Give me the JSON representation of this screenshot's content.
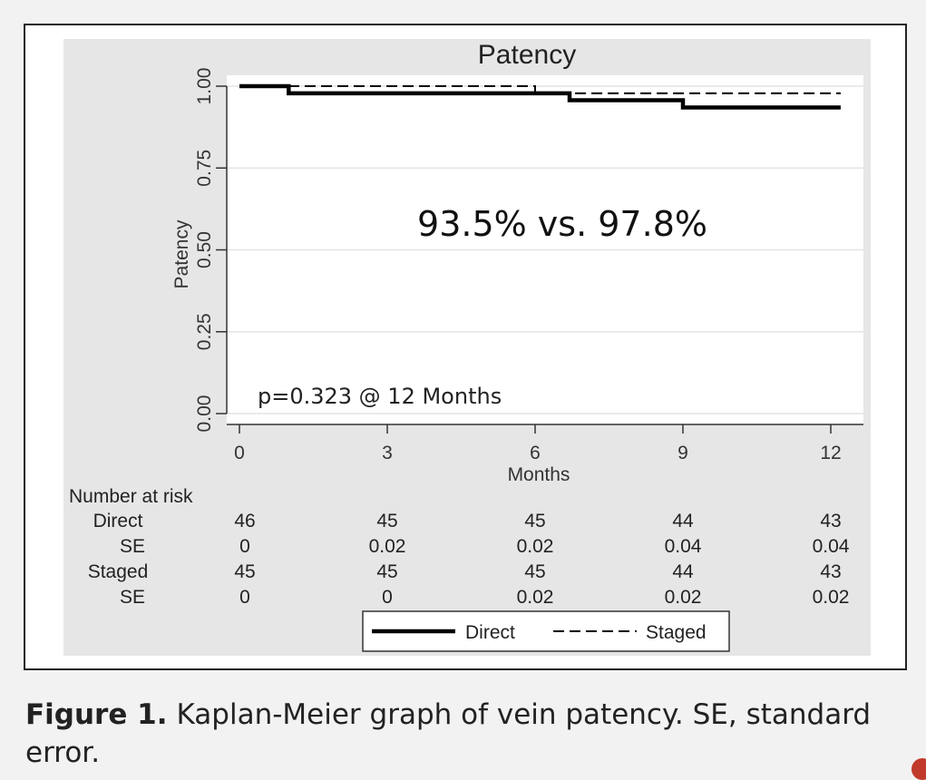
{
  "chart_data": {
    "type": "line",
    "title": "Patency",
    "xlabel": "Months",
    "ylabel": "Patency",
    "xlim": [
      0,
      12
    ],
    "ylim": [
      0,
      1
    ],
    "xticks": [
      0,
      3,
      6,
      9,
      12
    ],
    "xtick_labels": [
      "0",
      "3",
      "6",
      "9",
      "12"
    ],
    "yticks": [
      0,
      0.25,
      0.5,
      0.75,
      1.0
    ],
    "ytick_labels": [
      "0.00",
      "0.25",
      "0.50",
      "0.75",
      "1.00"
    ],
    "grid": true,
    "step": true,
    "series": [
      {
        "name": "Direct",
        "style": "solid",
        "color": "#000000",
        "points": [
          [
            0,
            1.0
          ],
          [
            1,
            1.0
          ],
          [
            1,
            0.978
          ],
          [
            6.7,
            0.978
          ],
          [
            6.7,
            0.957
          ],
          [
            9,
            0.957
          ],
          [
            9,
            0.935
          ],
          [
            12.2,
            0.935
          ]
        ]
      },
      {
        "name": "Staged",
        "style": "dashed",
        "color": "#000000",
        "points": [
          [
            0,
            1.0
          ],
          [
            6,
            1.0
          ],
          [
            6,
            0.978
          ],
          [
            12.2,
            0.978
          ]
        ]
      }
    ],
    "annotations": [
      "93.5% vs. 97.8%",
      "p=0.323 @ 12 Months"
    ],
    "risk_table": {
      "header": "Number at risk",
      "rows": [
        {
          "label": "Direct",
          "values": [
            "46",
            "45",
            "45",
            "44",
            "43"
          ]
        },
        {
          "label": "SE",
          "values": [
            "0",
            "0.02",
            "0.02",
            "0.04",
            "0.04"
          ]
        },
        {
          "label": "Staged",
          "values": [
            "45",
            "45",
            "45",
            "44",
            "43"
          ]
        },
        {
          "label": "SE",
          "values": [
            "0",
            "0",
            "0.02",
            "0.02",
            "0.02"
          ]
        }
      ]
    },
    "legend": {
      "position": "bottom",
      "items": [
        "Direct",
        "Staged"
      ]
    }
  },
  "caption": {
    "label": "Figure 1.",
    "text": "Kaplan-Meier graph of vein patency. SE, standard error."
  }
}
